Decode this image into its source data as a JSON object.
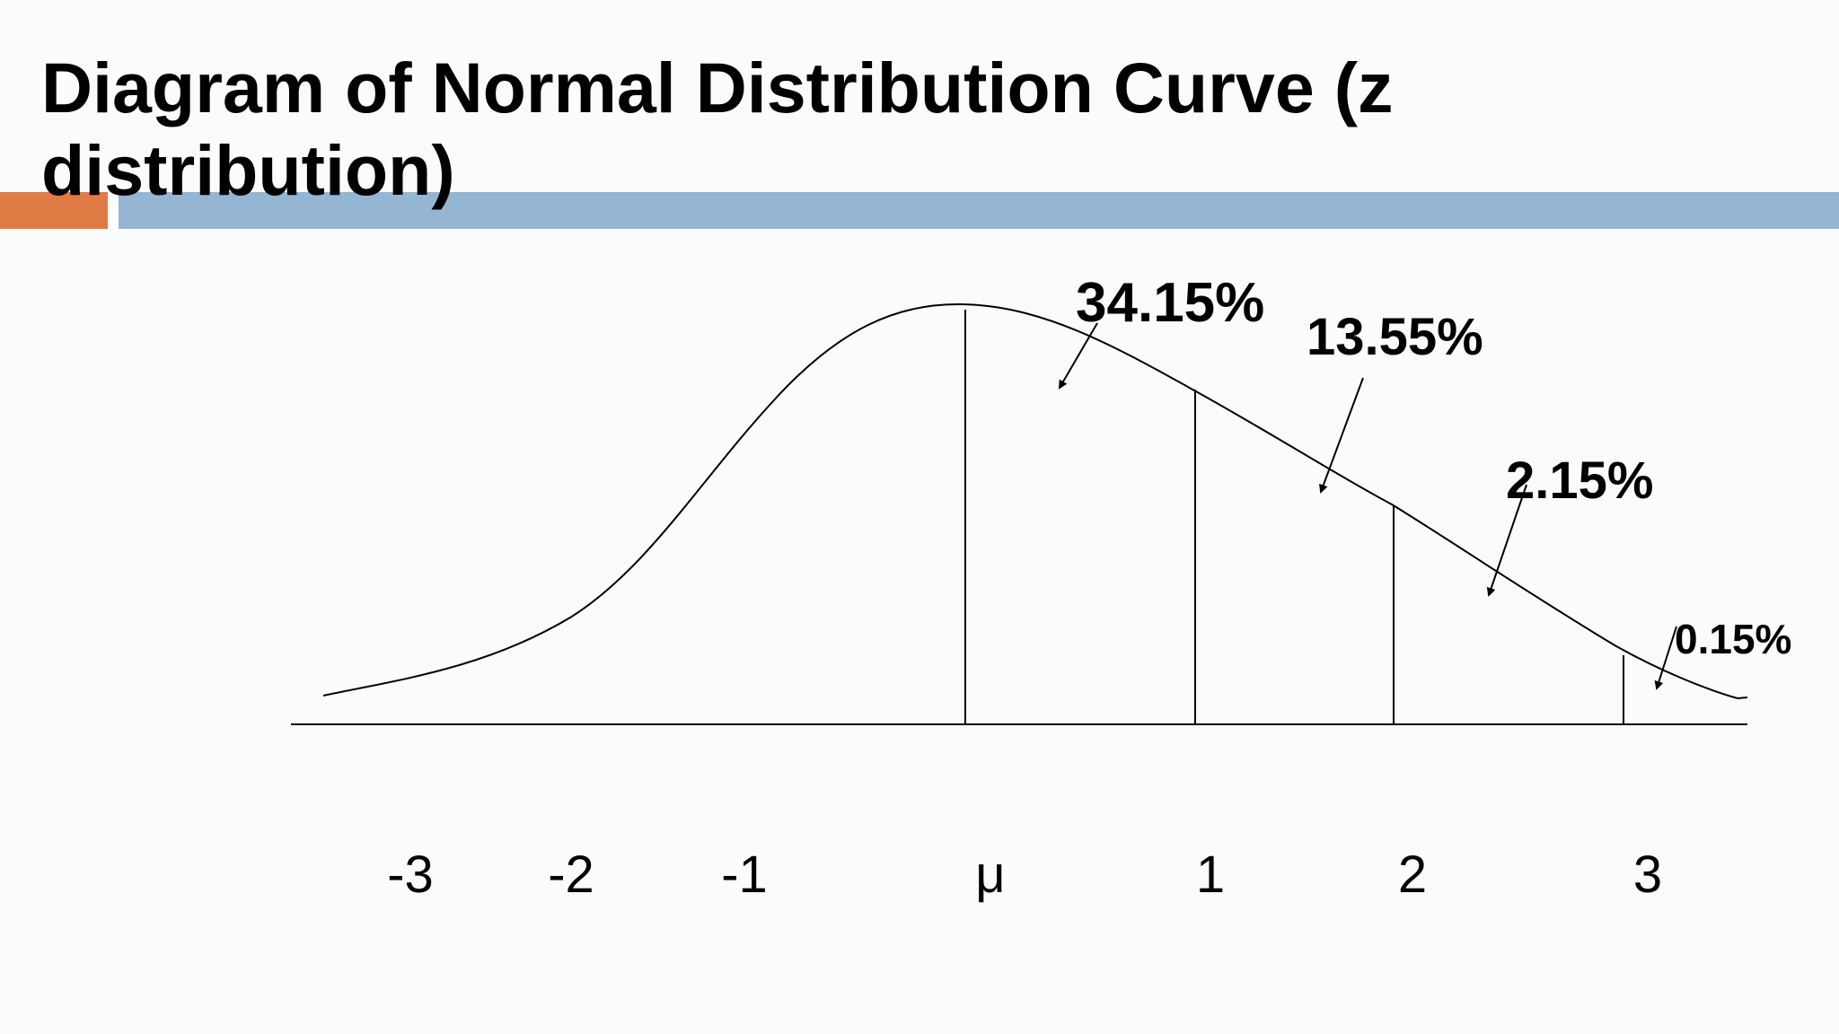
{
  "slide": {
    "title": "Diagram of Normal Distribution Curve (z distribution)",
    "accent_colors": {
      "orange": "#e07b45",
      "blue": "#94b6d2"
    }
  },
  "diagram": {
    "axis_labels": [
      "-3",
      "-2",
      "-1",
      "μ",
      "1",
      "2",
      "3"
    ],
    "percent_labels": [
      "34.15%",
      "13.55%",
      "2.15%",
      "0.15%"
    ]
  }
}
